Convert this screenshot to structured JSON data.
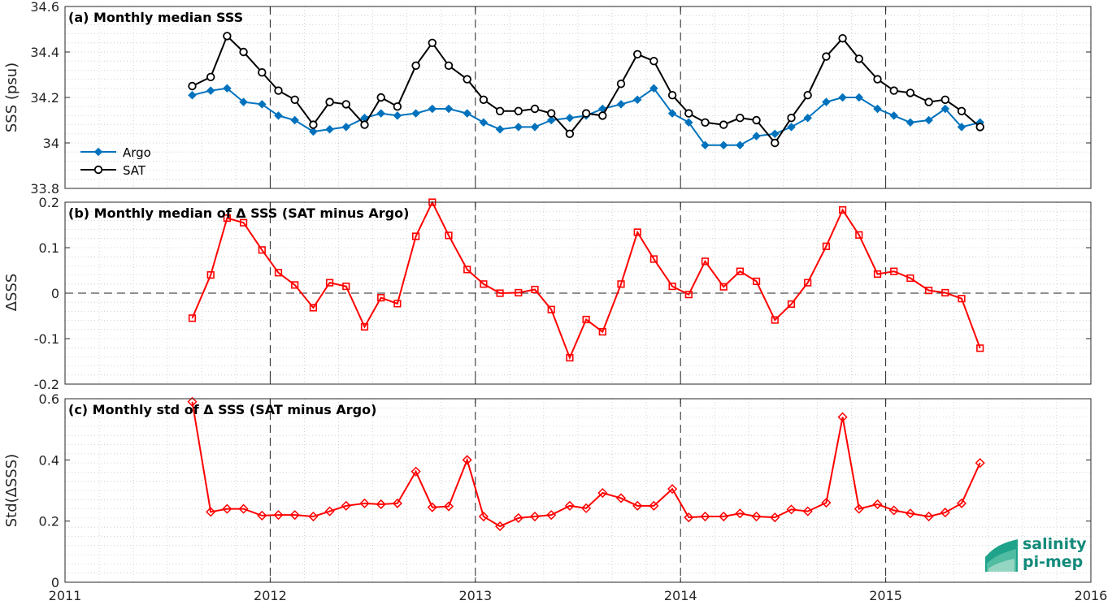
{
  "chart_data": [
    {
      "type": "line",
      "title": "(a) Monthly median SSS",
      "ylabel": "SSS (psu)",
      "xlim": [
        2011,
        2016
      ],
      "ylim": [
        33.8,
        34.6
      ],
      "xticks": [
        "2011",
        "2012",
        "2013",
        "2014",
        "2015",
        "2016"
      ],
      "yticks": [
        "33.8",
        "34",
        "34.2",
        "34.4",
        "34.6"
      ],
      "grid": true,
      "legend_position": "left",
      "x": [
        2011.62,
        2011.71,
        2011.79,
        2011.87,
        2011.96,
        2012.04,
        2012.12,
        2012.21,
        2012.29,
        2012.37,
        2012.46,
        2012.54,
        2012.62,
        2012.71,
        2012.79,
        2012.87,
        2012.96,
        2013.04,
        2013.12,
        2013.21,
        2013.29,
        2013.37,
        2013.46,
        2013.54,
        2013.62,
        2013.71,
        2013.79,
        2013.87,
        2013.96,
        2014.04,
        2014.12,
        2014.21,
        2014.29,
        2014.37,
        2014.46,
        2014.54,
        2014.62,
        2014.71,
        2014.79,
        2014.87,
        2014.96,
        2015.04,
        2015.12,
        2015.21,
        2015.29,
        2015.37,
        2015.46
      ],
      "series": [
        {
          "name": "Argo",
          "color": "#0072bd",
          "marker": "diamond",
          "values": [
            34.21,
            34.23,
            34.24,
            34.18,
            34.17,
            34.12,
            34.1,
            34.05,
            34.06,
            34.07,
            34.11,
            34.13,
            34.12,
            34.13,
            34.15,
            34.15,
            34.13,
            34.09,
            34.06,
            34.07,
            34.07,
            34.1,
            34.11,
            34.12,
            34.15,
            34.17,
            34.19,
            34.24,
            34.13,
            34.09,
            33.99,
            33.99,
            33.99,
            34.03,
            34.04,
            34.07,
            34.11,
            34.18,
            34.2,
            34.2,
            34.15,
            34.12,
            34.09,
            34.1,
            34.15,
            34.07,
            34.09
          ]
        },
        {
          "name": "SAT",
          "color": "#000000",
          "marker": "circle",
          "values": [
            34.25,
            34.29,
            34.47,
            34.4,
            34.31,
            34.23,
            34.19,
            34.08,
            34.18,
            34.17,
            34.08,
            34.2,
            34.16,
            34.34,
            34.44,
            34.34,
            34.28,
            34.19,
            34.14,
            34.14,
            34.15,
            34.13,
            34.04,
            34.13,
            34.12,
            34.26,
            34.39,
            34.36,
            34.21,
            34.13,
            34.09,
            34.08,
            34.11,
            34.1,
            34.0,
            34.11,
            34.21,
            34.38,
            34.46,
            34.37,
            34.28,
            34.23,
            34.22,
            34.18,
            34.19,
            34.14,
            34.07
          ]
        }
      ]
    },
    {
      "type": "line",
      "title": "(b) Monthly median of Δ SSS (SAT minus Argo)",
      "ylabel": "ΔSSS",
      "xlim": [
        2011,
        2016
      ],
      "ylim": [
        -0.2,
        0.2
      ],
      "yticks": [
        "-0.2",
        "-0.1",
        "0",
        "0.1",
        "0.2"
      ],
      "grid": true,
      "x": [
        2011.62,
        2011.71,
        2011.79,
        2011.87,
        2011.96,
        2012.04,
        2012.12,
        2012.21,
        2012.29,
        2012.37,
        2012.46,
        2012.54,
        2012.62,
        2012.71,
        2012.79,
        2012.87,
        2012.96,
        2013.04,
        2013.12,
        2013.21,
        2013.29,
        2013.37,
        2013.46,
        2013.54,
        2013.62,
        2013.71,
        2013.79,
        2013.87,
        2013.96,
        2014.04,
        2014.12,
        2014.21,
        2014.29,
        2014.37,
        2014.46,
        2014.54,
        2014.62,
        2014.71,
        2014.79,
        2014.87,
        2014.96,
        2015.04,
        2015.12,
        2015.21,
        2015.29,
        2015.37,
        2015.46
      ],
      "series": [
        {
          "color": "#ff0000",
          "marker": "square",
          "values": [
            -0.055,
            0.04,
            0.165,
            0.155,
            0.095,
            0.045,
            0.018,
            -0.032,
            0.023,
            0.015,
            -0.074,
            -0.01,
            -0.023,
            0.125,
            0.2,
            0.127,
            0.052,
            0.02,
            0.0,
            0.001,
            0.008,
            -0.036,
            -0.142,
            -0.058,
            -0.085,
            0.02,
            0.134,
            0.075,
            0.015,
            -0.003,
            0.07,
            0.014,
            0.048,
            0.026,
            -0.059,
            -0.024,
            0.023,
            0.103,
            0.183,
            0.128,
            0.042,
            0.048,
            0.033,
            0.006,
            0.001,
            -0.012,
            -0.121
          ]
        }
      ]
    },
    {
      "type": "line",
      "title": "(c) Monthly std of Δ SSS (SAT minus Argo)",
      "ylabel": "Std(ΔSSS)",
      "xlim": [
        2011,
        2016
      ],
      "ylim": [
        0,
        0.6
      ],
      "xticks": [
        "2011",
        "2012",
        "2013",
        "2014",
        "2015",
        "2016"
      ],
      "yticks": [
        "0",
        "0.2",
        "0.4",
        "0.6"
      ],
      "grid": true,
      "x": [
        2011.62,
        2011.71,
        2011.79,
        2011.87,
        2011.96,
        2012.04,
        2012.12,
        2012.21,
        2012.29,
        2012.37,
        2012.46,
        2012.54,
        2012.62,
        2012.71,
        2012.79,
        2012.87,
        2012.96,
        2013.04,
        2013.12,
        2013.21,
        2013.29,
        2013.37,
        2013.46,
        2013.54,
        2013.62,
        2013.71,
        2013.79,
        2013.87,
        2013.96,
        2014.04,
        2014.12,
        2014.21,
        2014.29,
        2014.37,
        2014.46,
        2014.54,
        2014.62,
        2014.71,
        2014.79,
        2014.87,
        2014.96,
        2015.04,
        2015.12,
        2015.21,
        2015.29,
        2015.37,
        2015.46
      ],
      "series": [
        {
          "color": "#ff0000",
          "marker": "diamond",
          "values": [
            0.59,
            0.23,
            0.24,
            0.24,
            0.218,
            0.22,
            0.22,
            0.215,
            0.232,
            0.25,
            0.258,
            0.255,
            0.258,
            0.362,
            0.245,
            0.248,
            0.4,
            0.215,
            0.183,
            0.21,
            0.215,
            0.22,
            0.25,
            0.242,
            0.292,
            0.275,
            0.25,
            0.25,
            0.305,
            0.212,
            0.215,
            0.215,
            0.225,
            0.215,
            0.212,
            0.238,
            0.232,
            0.26,
            0.54,
            0.24,
            0.255,
            0.235,
            0.225,
            0.215,
            0.228,
            0.258,
            0.39
          ]
        }
      ]
    }
  ],
  "logo": {
    "line1": "salinity",
    "line2": "pi-mep"
  }
}
